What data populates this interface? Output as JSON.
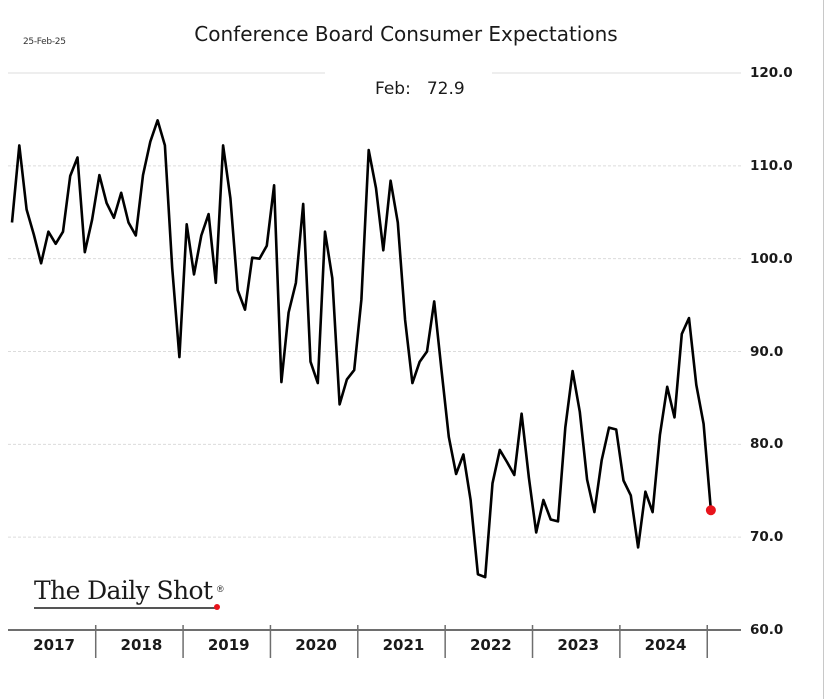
{
  "header": {
    "date_stamp": "25-Feb-25",
    "title": "Conference Board Consumer Expectations"
  },
  "annotation": {
    "label": "Feb:",
    "value": "72.9"
  },
  "logo": {
    "text": "The Daily Shot",
    "registered_mark": "®"
  },
  "colors": {
    "line": "#000000",
    "highlight_point": "#e8141c",
    "gridline": "#dcdcdc",
    "axis": "#6e6e6e"
  },
  "chart_data": {
    "type": "line",
    "title": "Conference Board Consumer Expectations",
    "xlabel": "",
    "ylabel": "",
    "ylim": [
      60,
      120
    ],
    "yticks": [
      60,
      70,
      80,
      90,
      100,
      110,
      120
    ],
    "ytick_labels": [
      "60.0",
      "70.0",
      "80.0",
      "90.0",
      "100.0",
      "110.0",
      "120.0"
    ],
    "y_axis_side": "right",
    "grid": true,
    "x_start": "2017-01",
    "x_end": "2025-02",
    "x_frequency": "monthly",
    "x_tick_labels": [
      "2017",
      "2018",
      "2019",
      "2020",
      "2021",
      "2022",
      "2023",
      "2024"
    ],
    "legend": null,
    "last_point_highlight": {
      "x": "2025-02",
      "y": 72.9,
      "label": "Feb: 72.9"
    },
    "series": [
      {
        "name": "Consumer Expectations",
        "values": [
          103.9,
          112.2,
          105.3,
          102.6,
          99.5,
          102.9,
          101.6,
          102.9,
          108.9,
          110.9,
          100.7,
          104.2,
          109.0,
          106.0,
          104.4,
          107.1,
          103.9,
          102.5,
          109.0,
          112.6,
          114.9,
          112.2,
          99.0,
          89.4,
          103.7,
          98.3,
          102.5,
          104.8,
          97.4,
          112.2,
          106.5,
          96.6,
          94.5,
          100.1,
          100.0,
          101.4,
          107.9,
          86.7,
          94.2,
          97.4,
          105.9,
          88.9,
          86.6,
          102.9,
          97.9,
          84.3,
          87.0,
          88.0,
          95.6,
          111.7,
          107.6,
          100.9,
          108.4,
          103.9,
          93.4,
          86.6,
          88.9,
          90.0,
          95.4,
          88.0,
          80.8,
          76.8,
          78.9,
          74.0,
          66.0,
          65.7,
          75.8,
          79.4,
          78.1,
          76.7,
          83.3,
          76.4,
          70.5,
          74.0,
          71.9,
          71.7,
          81.8,
          87.9,
          83.5,
          76.2,
          72.7,
          78.3,
          81.8,
          81.6,
          76.1,
          74.5,
          68.9,
          74.9,
          72.7,
          81.0,
          86.2,
          82.9,
          91.9,
          93.6,
          86.4,
          82.2,
          72.9
        ]
      }
    ]
  }
}
